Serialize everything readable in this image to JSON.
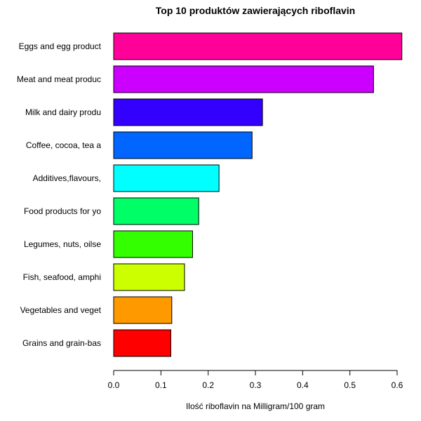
{
  "chart_data": {
    "type": "bar",
    "orientation": "horizontal",
    "title": "Top 10 produktów zawierających riboflavin",
    "xlabel": "Ilość riboflavin na Milligram/100 gram",
    "ylabel": "",
    "xlim": [
      0,
      0.6
    ],
    "xticks": [
      "0.0",
      "0.1",
      "0.2",
      "0.3",
      "0.4",
      "0.5",
      "0.6"
    ],
    "grid": false,
    "legend": "none",
    "categories": [
      "Eggs and egg product",
      "Meat and meat produc",
      "Milk and dairy produ",
      "Coffee, cocoa, tea a",
      "Additives,flavours,",
      "Food products for yo",
      "Legumes, nuts, oilse",
      "Fish, seafood, amphi",
      "Vegetables and veget",
      "Grains and grain-bas"
    ],
    "values": [
      0.61,
      0.55,
      0.315,
      0.293,
      0.223,
      0.18,
      0.167,
      0.15,
      0.123,
      0.121
    ],
    "colors": [
      "#FF0099",
      "#CC00FF",
      "#3300FF",
      "#0066FF",
      "#00FFFF",
      "#00FF66",
      "#33FF00",
      "#CCFF00",
      "#FF9900",
      "#FF0000"
    ]
  }
}
